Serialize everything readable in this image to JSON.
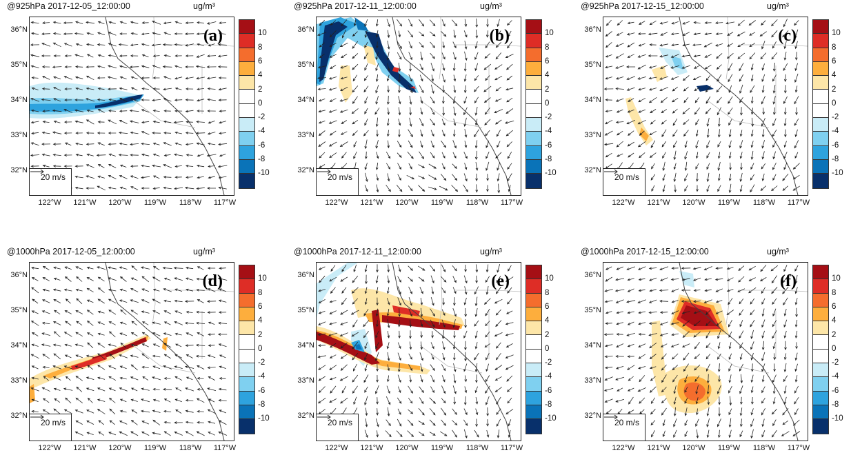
{
  "unit": "ug/m³",
  "ref_vector_label": "20 m/s",
  "lat_labels": [
    "36°N",
    "35°N",
    "34°N",
    "33°N",
    "32°N"
  ],
  "lon_labels": [
    "122°W",
    "121°W",
    "120°W",
    "119°W",
    "118°W",
    "117°W"
  ],
  "colorbar": {
    "labels": [
      "10",
      "8",
      "6",
      "4",
      "2",
      "0",
      "-2",
      "-4",
      "-6",
      "-8",
      "-10"
    ],
    "colors": [
      "#a50f15",
      "#de2d26",
      "#f46d2d",
      "#fdae3d",
      "#fde6a8",
      "#ffffff",
      "#ffffff",
      "#c9ecf7",
      "#7fd0f0",
      "#2ea3de",
      "#0a73b8",
      "#08306b"
    ]
  },
  "panels": [
    {
      "title": "@925hPa 2017-12-05_12:00:00",
      "label": "(a)"
    },
    {
      "title": "@925hPa 2017-12-11_12:00:00",
      "label": "(b)"
    },
    {
      "title": "@925hPa 2017-12-15_12:00:00",
      "label": "(c)"
    },
    {
      "title": "@1000hPa 2017-12-05_12:00:00",
      "label": "(d)"
    },
    {
      "title": "@1000hPa 2017-12-11_12:00:00",
      "label": "(e)"
    },
    {
      "title": "@1000hPa 2017-12-15_12:00:00",
      "label": "(f)"
    }
  ]
}
